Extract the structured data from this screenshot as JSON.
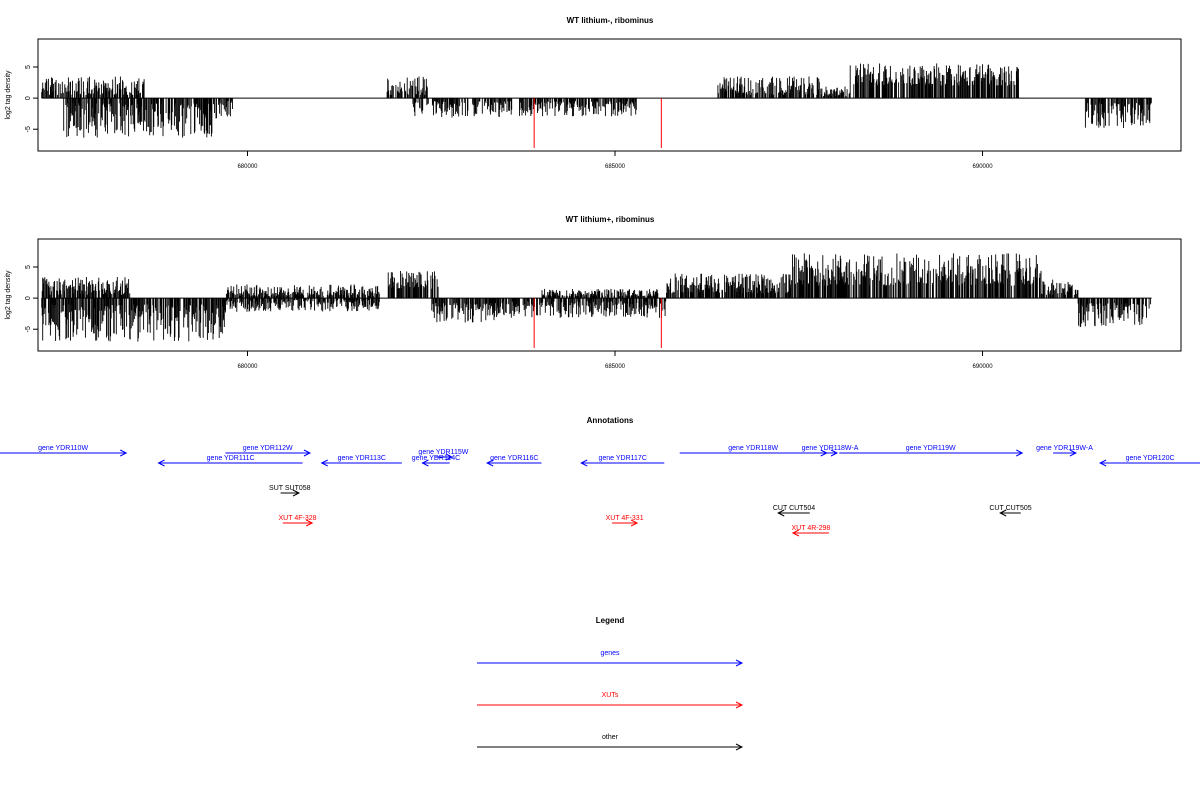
{
  "chart_data": [
    {
      "type": "bar",
      "title": "WT lithium-, ribominus",
      "ylabel": "log2 tag density",
      "xlim": [
        677150,
        692700
      ],
      "ylim": [
        -8.5,
        9.5
      ],
      "yticks": [
        -5,
        0,
        5
      ],
      "xticks": [
        680000,
        685000,
        690000
      ],
      "xtick_labels": [
        "680000",
        "685000",
        "690000"
      ],
      "red_markers": [
        683900,
        685630
      ],
      "regions": [
        {
          "x0": 677200,
          "x1": 678600,
          "sign": 1,
          "lo": 0.5,
          "hi": 3.5
        },
        {
          "x0": 677500,
          "x1": 679600,
          "sign": -1,
          "lo": 0.8,
          "hi": 6.5
        },
        {
          "x0": 679600,
          "x1": 679800,
          "sign": -1,
          "lo": 0.5,
          "hi": 3.0
        },
        {
          "x0": 681900,
          "x1": 682450,
          "sign": 1,
          "lo": 0.5,
          "hi": 3.5
        },
        {
          "x0": 682250,
          "x1": 683600,
          "sign": -1,
          "lo": 0.5,
          "hi": 3.2
        },
        {
          "x0": 683700,
          "x1": 685300,
          "sign": -1,
          "lo": 0.5,
          "hi": 3.0
        },
        {
          "x0": 686400,
          "x1": 687800,
          "sign": 1,
          "lo": 0.5,
          "hi": 3.5
        },
        {
          "x0": 688200,
          "x1": 690500,
          "sign": 1,
          "lo": 2.0,
          "hi": 5.6
        },
        {
          "x0": 687800,
          "x1": 688200,
          "sign": 1,
          "lo": 0.3,
          "hi": 2.0
        },
        {
          "x0": 691400,
          "x1": 692300,
          "sign": -1,
          "lo": 0.8,
          "hi": 4.8
        }
      ]
    },
    {
      "type": "bar",
      "title": "WT lithium+, ribominus",
      "ylabel": "log2 tag density",
      "xlim": [
        677150,
        692700
      ],
      "ylim": [
        -8.5,
        9.5
      ],
      "yticks": [
        -5,
        0,
        5
      ],
      "xticks": [
        680000,
        685000,
        690000
      ],
      "xtick_labels": [
        "680000",
        "685000",
        "690000"
      ],
      "red_markers": [
        683900,
        685630
      ],
      "regions": [
        {
          "x0": 677200,
          "x1": 678400,
          "sign": 1,
          "lo": 0.5,
          "hi": 3.5
        },
        {
          "x0": 677200,
          "x1": 679700,
          "sign": -1,
          "lo": 1.0,
          "hi": 7.0
        },
        {
          "x0": 679700,
          "x1": 681800,
          "sign": 1,
          "lo": 0.3,
          "hi": 2.2
        },
        {
          "x0": 679700,
          "x1": 681800,
          "sign": -1,
          "lo": 0.3,
          "hi": 2.2
        },
        {
          "x0": 681900,
          "x1": 682600,
          "sign": 1,
          "lo": 1.5,
          "hi": 4.5
        },
        {
          "x0": 682500,
          "x1": 683400,
          "sign": -1,
          "lo": 0.8,
          "hi": 4.0
        },
        {
          "x0": 683400,
          "x1": 685700,
          "sign": -1,
          "lo": 0.5,
          "hi": 3.2
        },
        {
          "x0": 684000,
          "x1": 685600,
          "sign": 1,
          "lo": 0.3,
          "hi": 1.5
        },
        {
          "x0": 685700,
          "x1": 687400,
          "sign": 1,
          "lo": 0.8,
          "hi": 4.0
        },
        {
          "x0": 687400,
          "x1": 690800,
          "sign": 1,
          "lo": 2.0,
          "hi": 7.2
        },
        {
          "x0": 690800,
          "x1": 691300,
          "sign": 1,
          "lo": 0.5,
          "hi": 3.0
        },
        {
          "x0": 691300,
          "x1": 692300,
          "sign": -1,
          "lo": 0.8,
          "hi": 4.8
        }
      ]
    }
  ],
  "annotations": {
    "title": "Annotations",
    "features": [
      {
        "label": "gene YDR110W",
        "color": "#0000ff",
        "x0": 676400,
        "x1": 678350,
        "dir": "right",
        "row": 0
      },
      {
        "label": "gene YDR111C",
        "color": "#0000ff",
        "x0": 678790,
        "x1": 680750,
        "dir": "left",
        "row": 1
      },
      {
        "label": "gene YDR112W",
        "color": "#0000ff",
        "x0": 679700,
        "x1": 680850,
        "dir": "right",
        "row": 0
      },
      {
        "label": "gene YDR113C",
        "color": "#0000ff",
        "x0": 681010,
        "x1": 682100,
        "dir": "left",
        "row": 1
      },
      {
        "label": "gene YDR114C",
        "color": "#0000ff",
        "x0": 682380,
        "x1": 682750,
        "dir": "left",
        "row": 1
      },
      {
        "label": "gene YDR115W",
        "color": "#0000ff",
        "x0": 682550,
        "x1": 682780,
        "dir": "right",
        "row": 0.4
      },
      {
        "label": "gene YDR116C",
        "color": "#0000ff",
        "x0": 683260,
        "x1": 684000,
        "dir": "left",
        "row": 1
      },
      {
        "label": "gene YDR117C",
        "color": "#0000ff",
        "x0": 684540,
        "x1": 685670,
        "dir": "left",
        "row": 1
      },
      {
        "label": "gene YDR118W",
        "color": "#0000ff",
        "x0": 685880,
        "x1": 687880,
        "dir": "right",
        "row": 0
      },
      {
        "label": "gene YDR118W-A",
        "color": "#0000ff",
        "x0": 687830,
        "x1": 688020,
        "dir": "right",
        "row": 0
      },
      {
        "label": "gene YDR119W",
        "color": "#0000ff",
        "x0": 688050,
        "x1": 690540,
        "dir": "right",
        "row": 0
      },
      {
        "label": "gene YDR119W-A",
        "color": "#0000ff",
        "x0": 690960,
        "x1": 691270,
        "dir": "right",
        "row": 0
      },
      {
        "label": "gene YDR120C",
        "color": "#0000ff",
        "x0": 691600,
        "x1": 693100,
        "dir": "left",
        "row": 1
      },
      {
        "label": "SUT SUT058",
        "color": "#000000",
        "x0": 680450,
        "x1": 680700,
        "dir": "right",
        "row": 4
      },
      {
        "label": "XUT 4F-328",
        "color": "#ff0000",
        "x0": 680480,
        "x1": 680880,
        "dir": "right",
        "row": 7
      },
      {
        "label": "XUT 4F-331",
        "color": "#ff0000",
        "x0": 684960,
        "x1": 685300,
        "dir": "right",
        "row": 7
      },
      {
        "label": "CUT CUT504",
        "color": "#000000",
        "x0": 687220,
        "x1": 687650,
        "dir": "left",
        "row": 6
      },
      {
        "label": "XUT 4R-298",
        "color": "#ff0000",
        "x0": 687420,
        "x1": 687910,
        "dir": "left",
        "row": 8
      },
      {
        "label": "CUT CUT505",
        "color": "#000000",
        "x0": 690240,
        "x1": 690520,
        "dir": "left",
        "row": 6
      }
    ]
  },
  "legend": {
    "title": "Legend",
    "items": [
      {
        "label": "genes",
        "color": "#0000ff"
      },
      {
        "label": "XUTs",
        "color": "#ff0000"
      },
      {
        "label": "other",
        "color": "#000000"
      }
    ]
  }
}
